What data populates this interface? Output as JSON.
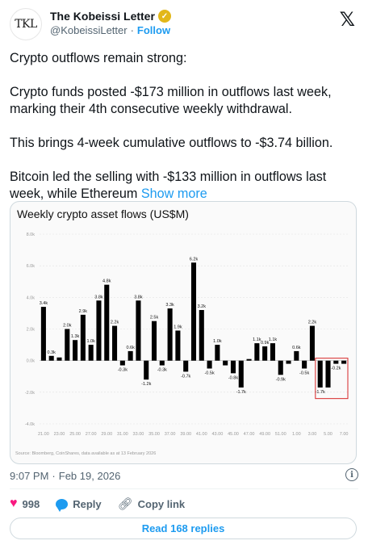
{
  "author": {
    "avatar_text": "TKL",
    "name": "The Kobeissi Letter",
    "handle": "@KobeissiLetter",
    "separator": "·",
    "follow_label": "Follow",
    "verified_icon": "verified-gold-badge-icon"
  },
  "x_logo": "𝕏",
  "tweet": {
    "p1": "Crypto outflows remain strong:",
    "p2": "Crypto funds posted -$173 million in outflows last week, marking their 4th consecutive weekly withdrawal.",
    "p3": "This brings 4-week cumulative outflows to -$3.74 billion.",
    "p4": "Bitcoin led the selling with -$133 million in outflows last week, while Ethereum",
    "show_more": "Show more"
  },
  "chart_data": {
    "type": "bar",
    "title": "Weekly crypto asset flows (US$M)",
    "source": "Source: Bloomberg, CoinShares, data available as at 13 February 2026",
    "ylim": [
      -4,
      8
    ],
    "yticks": [
      "-4.0k",
      "-2.0k",
      "0.0k",
      "2.0k",
      "4.0k",
      "6.0k",
      "8.0k"
    ],
    "x_tick_labels": [
      "21.00",
      "23.00",
      "25.00",
      "27.00",
      "29.00",
      "31.00",
      "33.00",
      "35.00",
      "37.00",
      "39.00",
      "41.00",
      "43.00",
      "45.00",
      "47.00",
      "49.00",
      "51.00",
      "1.00",
      "3.00",
      "5.00",
      "7.00"
    ],
    "values": [
      3.4,
      0.3,
      0.2,
      2.0,
      1.3,
      2.9,
      1.0,
      3.8,
      4.8,
      2.2,
      -0.3,
      0.6,
      3.8,
      -1.2,
      2.5,
      -0.3,
      3.3,
      1.9,
      -0.7,
      6.2,
      3.2,
      -0.5,
      1.0,
      -0.3,
      -0.8,
      -1.7,
      0.1,
      1.1,
      0.9,
      1.1,
      -0.9,
      -0.2,
      0.6,
      -0.5,
      2.2,
      -1.7,
      -1.7,
      -0.2,
      -0.2
    ],
    "data_labels": [
      "3.4k",
      "0.3k",
      "",
      "2.0k",
      "1.3k",
      "2.9k",
      "1.0k",
      "3.8k",
      "4.8k",
      "2.2k",
      "-0.3k",
      "0.6k",
      "3.8k",
      "-1.2k",
      "2.5k",
      "-0.3k",
      "3.3k",
      "1.9k",
      "-0.7k",
      "6.2k",
      "3.2k",
      "-0.5k",
      "1.0k",
      "",
      "-0.8k",
      "-1.7k",
      "",
      "1.1k",
      "0.9k",
      "1.1k",
      "-0.9k",
      "",
      "0.6k",
      "-0.5k",
      "2.2k",
      "-1.7k",
      "",
      "-0.2k",
      ""
    ],
    "highlight": "red box around last 4 weeks",
    "bar_color": "#000000",
    "highlight_color": "#d62728",
    "grid": true
  },
  "meta": {
    "time": "9:07 PM",
    "separator": "·",
    "date": "Feb 19, 2026"
  },
  "actions": {
    "likes": "998",
    "reply_label": "Reply",
    "copy_link_label": "Copy link"
  },
  "replies_button": "Read 168 replies",
  "colors": {
    "accent": "#1d9bf0",
    "like": "#f91880",
    "muted": "#536471"
  }
}
